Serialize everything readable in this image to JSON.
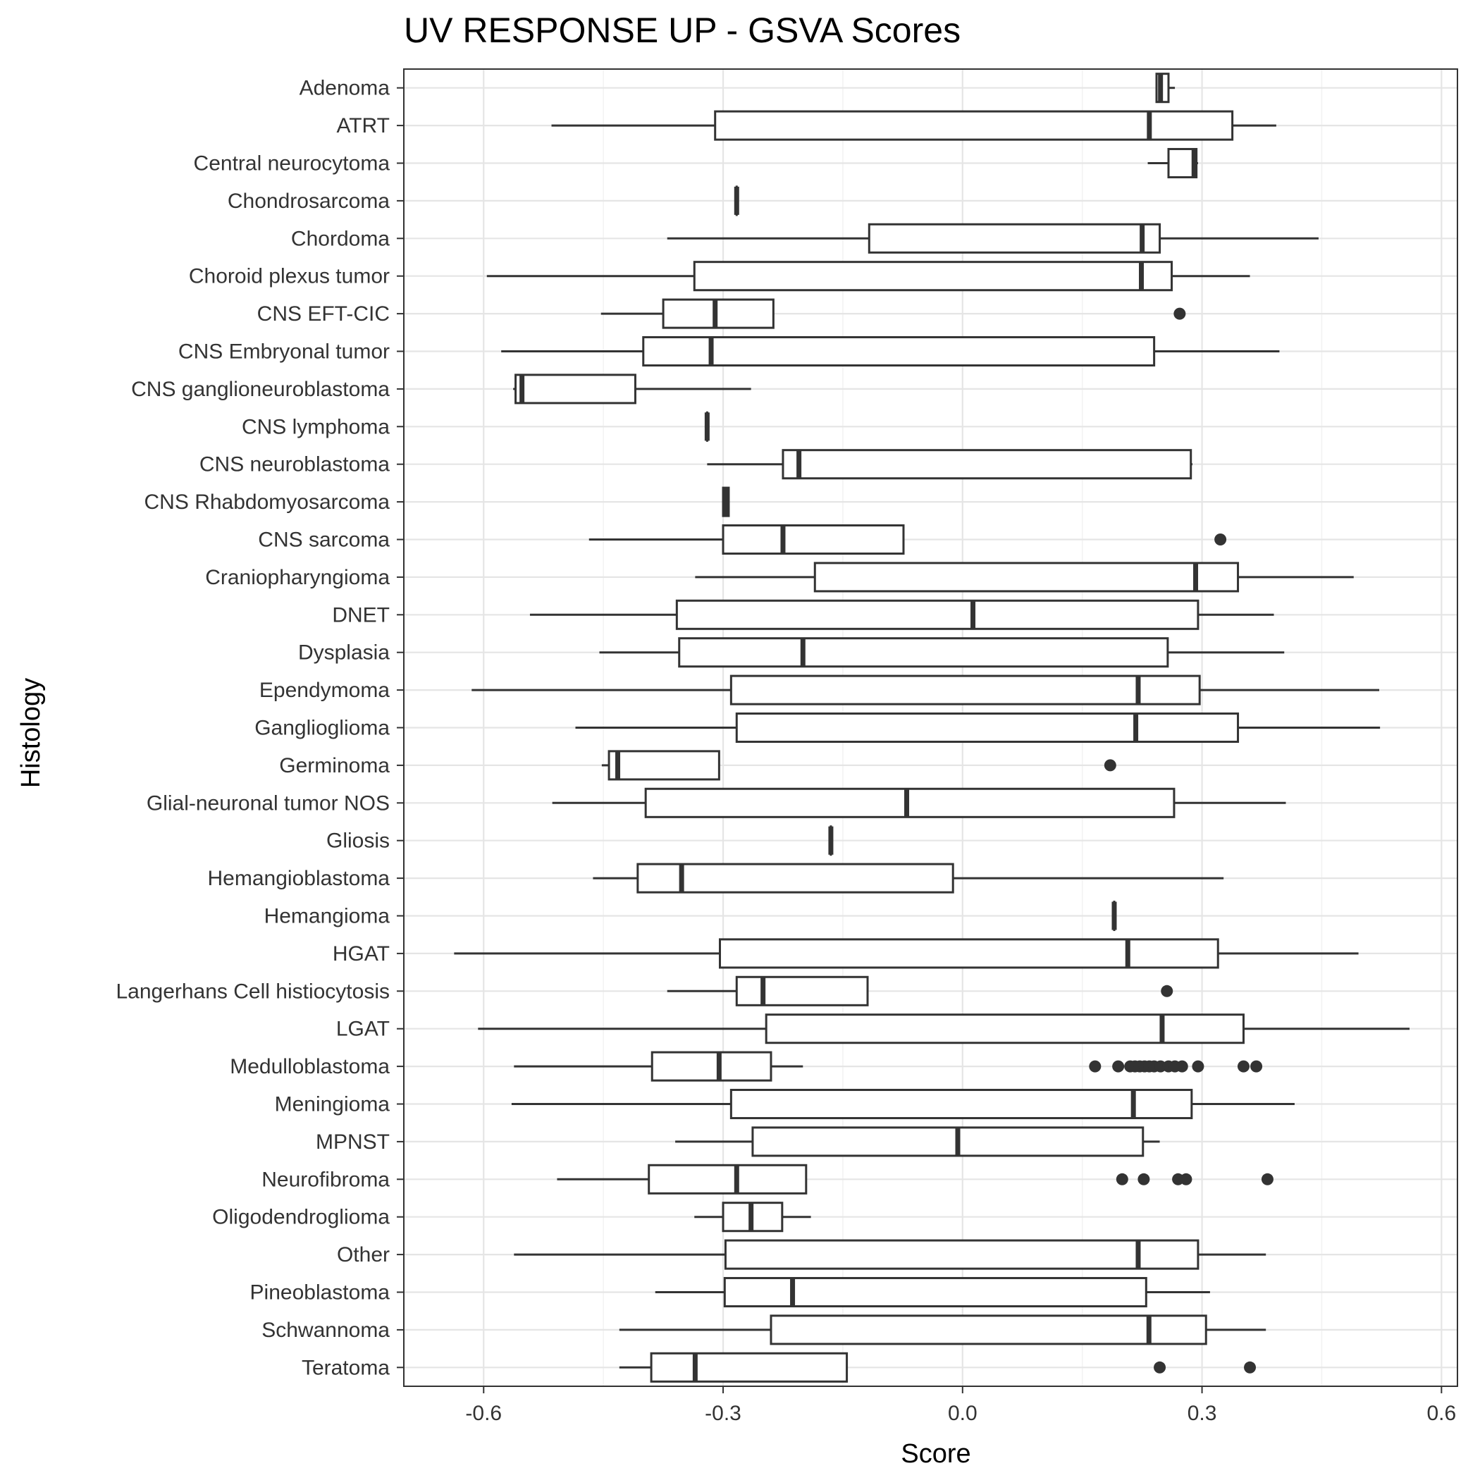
{
  "chart_data": {
    "type": "boxplot",
    "title": "UV RESPONSE UP - GSVA Scores",
    "xlabel": "Score",
    "ylabel": "Histology",
    "xlim": [
      -0.7,
      0.62
    ],
    "x_ticks": [
      -0.6,
      -0.3,
      0.0,
      0.3,
      0.6
    ],
    "x_tick_labels": [
      "-0.6",
      "-0.3",
      "0.0",
      "0.3",
      "0.6"
    ],
    "grid": true,
    "colors": {
      "box": "#333333",
      "outlier": "#333333",
      "grid_major": "#e5e5e5",
      "grid_minor": "#f2f2f2",
      "panel_border": "#333333"
    },
    "categories": [
      {
        "label": "Teratoma",
        "whisker_low": -0.43,
        "q1": -0.39,
        "median": -0.335,
        "q3": -0.145,
        "whisker_high": -0.145,
        "outliers": [
          0.247,
          0.36
        ]
      },
      {
        "label": "Schwannoma",
        "whisker_low": -0.43,
        "q1": -0.24,
        "median": 0.2335,
        "q3": 0.305,
        "whisker_high": 0.38,
        "outliers": []
      },
      {
        "label": "Pineoblastoma",
        "whisker_low": -0.385,
        "q1": -0.298,
        "median": -0.213,
        "q3": 0.23,
        "whisker_high": 0.31,
        "outliers": []
      },
      {
        "label": "Other",
        "whisker_low": -0.562,
        "q1": -0.297,
        "median": 0.22,
        "q3": 0.295,
        "whisker_high": 0.38,
        "outliers": []
      },
      {
        "label": "Oligodendroglioma",
        "whisker_low": -0.336,
        "q1": -0.3,
        "median": -0.265,
        "q3": -0.226,
        "whisker_high": -0.19,
        "outliers": []
      },
      {
        "label": "Neurofibroma",
        "whisker_low": -0.508,
        "q1": -0.393,
        "median": -0.283,
        "q3": -0.196,
        "whisker_high": -0.196,
        "outliers": [
          0.2,
          0.227,
          0.27,
          0.28,
          0.382
        ]
      },
      {
        "label": "MPNST",
        "whisker_low": -0.36,
        "q1": -0.263,
        "median": -0.006,
        "q3": 0.226,
        "whisker_high": 0.247,
        "outliers": []
      },
      {
        "label": "Meningioma",
        "whisker_low": -0.565,
        "q1": -0.29,
        "median": 0.214,
        "q3": 0.287,
        "whisker_high": 0.416,
        "outliers": []
      },
      {
        "label": "Medulloblastoma",
        "whisker_low": -0.562,
        "q1": -0.389,
        "median": -0.305,
        "q3": -0.24,
        "whisker_high": -0.2,
        "outliers": [
          0.166,
          0.195,
          0.21,
          0.216,
          0.222,
          0.228,
          0.234,
          0.24,
          0.248,
          0.258,
          0.266,
          0.275,
          0.295,
          0.352,
          0.368
        ]
      },
      {
        "label": "LGAT",
        "whisker_low": -0.607,
        "q1": -0.246,
        "median": 0.25,
        "q3": 0.352,
        "whisker_high": 0.56,
        "outliers": []
      },
      {
        "label": "Langerhans Cell histiocytosis",
        "whisker_low": -0.37,
        "q1": -0.283,
        "median": -0.25,
        "q3": -0.119,
        "whisker_high": -0.119,
        "outliers": [
          0.256
        ]
      },
      {
        "label": "HGAT",
        "whisker_low": -0.637,
        "q1": -0.304,
        "median": 0.207,
        "q3": 0.32,
        "whisker_high": 0.496,
        "outliers": []
      },
      {
        "label": "Hemangioma",
        "whisker_low": 0.19,
        "q1": 0.19,
        "median": 0.19,
        "q3": 0.19,
        "whisker_high": 0.19,
        "outliers": []
      },
      {
        "label": "Hemangioblastoma",
        "whisker_low": -0.463,
        "q1": -0.407,
        "median": -0.352,
        "q3": -0.012,
        "whisker_high": 0.327,
        "outliers": []
      },
      {
        "label": "Gliosis",
        "whisker_low": -0.165,
        "q1": -0.165,
        "median": -0.165,
        "q3": -0.165,
        "whisker_high": -0.165,
        "outliers": []
      },
      {
        "label": "Glial-neuronal tumor NOS",
        "whisker_low": -0.514,
        "q1": -0.397,
        "median": -0.07,
        "q3": 0.265,
        "whisker_high": 0.405,
        "outliers": []
      },
      {
        "label": "Germinoma",
        "whisker_low": -0.452,
        "q1": -0.443,
        "median": -0.432,
        "q3": -0.305,
        "whisker_high": -0.305,
        "outliers": [
          0.185
        ]
      },
      {
        "label": "Ganglioglioma",
        "whisker_low": -0.485,
        "q1": -0.283,
        "median": 0.217,
        "q3": 0.345,
        "whisker_high": 0.523,
        "outliers": []
      },
      {
        "label": "Ependymoma",
        "whisker_low": -0.615,
        "q1": -0.29,
        "median": 0.22,
        "q3": 0.297,
        "whisker_high": 0.522,
        "outliers": []
      },
      {
        "label": "Dysplasia",
        "whisker_low": -0.455,
        "q1": -0.355,
        "median": -0.2,
        "q3": 0.257,
        "whisker_high": 0.403,
        "outliers": []
      },
      {
        "label": "DNET",
        "whisker_low": -0.542,
        "q1": -0.358,
        "median": 0.013,
        "q3": 0.295,
        "whisker_high": 0.39,
        "outliers": []
      },
      {
        "label": "Craniopharyngioma",
        "whisker_low": -0.335,
        "q1": -0.185,
        "median": 0.292,
        "q3": 0.345,
        "whisker_high": 0.49,
        "outliers": []
      },
      {
        "label": "CNS sarcoma",
        "whisker_low": -0.468,
        "q1": -0.3,
        "median": -0.225,
        "q3": -0.074,
        "whisker_high": -0.074,
        "outliers": [
          0.323
        ]
      },
      {
        "label": "CNS Rhabdomyosarcoma",
        "whisker_low": -0.3,
        "q1": -0.3,
        "median": -0.297,
        "q3": -0.293,
        "whisker_high": -0.293,
        "outliers": []
      },
      {
        "label": "CNS neuroblastoma",
        "whisker_low": -0.32,
        "q1": -0.225,
        "median": -0.205,
        "q3": 0.286,
        "whisker_high": 0.288,
        "outliers": []
      },
      {
        "label": "CNS lymphoma",
        "whisker_low": -0.32,
        "q1": -0.32,
        "median": -0.32,
        "q3": -0.32,
        "whisker_high": -0.32,
        "outliers": []
      },
      {
        "label": "CNS ganglioneuroblastoma",
        "whisker_low": -0.563,
        "q1": -0.56,
        "median": -0.552,
        "q3": -0.41,
        "whisker_high": -0.265,
        "outliers": []
      },
      {
        "label": "CNS Embryonal tumor",
        "whisker_low": -0.578,
        "q1": -0.4,
        "median": -0.315,
        "q3": 0.24,
        "whisker_high": 0.397,
        "outliers": []
      },
      {
        "label": "CNS EFT-CIC",
        "whisker_low": -0.453,
        "q1": -0.375,
        "median": -0.31,
        "q3": -0.237,
        "whisker_high": -0.237,
        "outliers": [
          0.272
        ]
      },
      {
        "label": "Choroid plexus tumor",
        "whisker_low": -0.596,
        "q1": -0.336,
        "median": 0.224,
        "q3": 0.262,
        "whisker_high": 0.36,
        "outliers": []
      },
      {
        "label": "Chordoma",
        "whisker_low": -0.37,
        "q1": -0.117,
        "median": 0.225,
        "q3": 0.247,
        "whisker_high": 0.446,
        "outliers": []
      },
      {
        "label": "Chondrosarcoma",
        "whisker_low": -0.283,
        "q1": -0.283,
        "median": -0.283,
        "q3": -0.283,
        "whisker_high": -0.283,
        "outliers": []
      },
      {
        "label": "Central neurocytoma",
        "whisker_low": 0.232,
        "q1": 0.258,
        "median": 0.29,
        "q3": 0.293,
        "whisker_high": 0.295,
        "outliers": []
      },
      {
        "label": "ATRT",
        "whisker_low": -0.515,
        "q1": -0.31,
        "median": 0.234,
        "q3": 0.338,
        "whisker_high": 0.393,
        "outliers": []
      },
      {
        "label": "Adenoma",
        "whisker_low": 0.243,
        "q1": 0.243,
        "median": 0.248,
        "q3": 0.258,
        "whisker_high": 0.266,
        "outliers": []
      }
    ]
  }
}
